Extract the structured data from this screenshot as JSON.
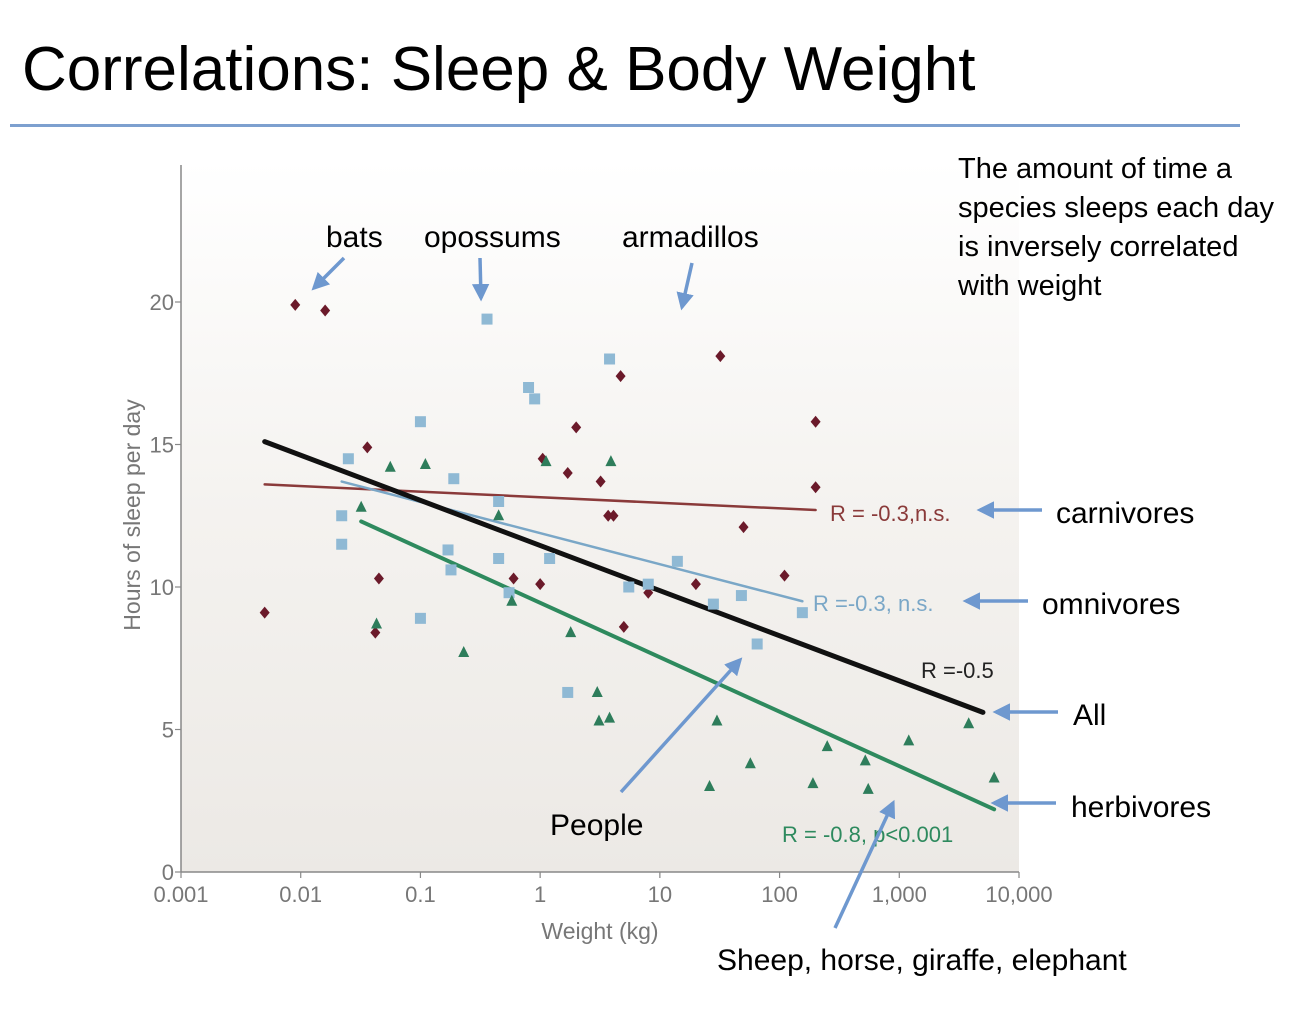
{
  "title": "Correlations: Sleep & Body Weight",
  "description": "The amount of time a species sleeps each day is inversely correlated with weight",
  "annotations": {
    "bats": "bats",
    "opossums": "opossums",
    "armadillos": "armadillos",
    "carnivores": "carnivores",
    "omnivores": "omnivores",
    "all": "All",
    "herbivores": "herbivores",
    "people": "People",
    "large_herbivores": "Sheep, horse, giraffe, elephant"
  },
  "colors": {
    "carnivore": "#6b1a2a",
    "omnivore": "#8fb9d4",
    "herbivore": "#2e7d5b",
    "all": "#111111",
    "carnivore_line": "#8a3a3a",
    "omnivore_line": "#7aa7c7",
    "herbivore_line": "#2e8a5e",
    "arrow": "#6e98cf",
    "plot_bg": "#f1efec",
    "axis": "#888888"
  },
  "chart_data": {
    "type": "scatter",
    "xlabel": "Weight (kg)",
    "ylabel": "Hours of sleep per day",
    "xscale": "log",
    "xlim": [
      0.001,
      10000
    ],
    "ylim": [
      0,
      24
    ],
    "xticks": [
      {
        "value": 0.001,
        "label": "0.001"
      },
      {
        "value": 0.01,
        "label": "0.01"
      },
      {
        "value": 0.1,
        "label": "0.1"
      },
      {
        "value": 1,
        "label": "1"
      },
      {
        "value": 10,
        "label": "10"
      },
      {
        "value": 100,
        "label": "100"
      },
      {
        "value": 1000,
        "label": "1,000"
      },
      {
        "value": 10000,
        "label": "10,000"
      }
    ],
    "yticks": [
      {
        "value": 0,
        "label": "0"
      },
      {
        "value": 5,
        "label": "5"
      },
      {
        "value": 10,
        "label": "10"
      },
      {
        "value": 15,
        "label": "15"
      },
      {
        "value": 20,
        "label": "20"
      }
    ],
    "grid": false,
    "series": [
      {
        "key": "carnivore",
        "marker": "diamond",
        "points": [
          [
            0.005,
            9.1
          ],
          [
            0.009,
            19.9
          ],
          [
            0.016,
            19.7
          ],
          [
            0.036,
            14.9
          ],
          [
            0.045,
            10.3
          ],
          [
            0.042,
            8.4
          ],
          [
            0.6,
            10.3
          ],
          [
            1.0,
            10.1
          ],
          [
            1.05,
            14.5
          ],
          [
            1.7,
            14.0
          ],
          [
            2.0,
            15.6
          ],
          [
            3.2,
            13.7
          ],
          [
            3.7,
            12.5
          ],
          [
            4.1,
            12.5
          ],
          [
            4.7,
            17.4
          ],
          [
            5.0,
            8.6
          ],
          [
            8.0,
            9.8
          ],
          [
            20,
            10.1
          ],
          [
            32,
            18.1
          ],
          [
            50,
            12.1
          ],
          [
            110,
            10.4
          ],
          [
            200,
            15.8
          ],
          [
            200,
            13.5
          ]
        ]
      },
      {
        "key": "omnivore",
        "marker": "square",
        "points": [
          [
            0.022,
            12.5
          ],
          [
            0.022,
            11.5
          ],
          [
            0.025,
            14.5
          ],
          [
            0.1,
            15.8
          ],
          [
            0.1,
            8.9
          ],
          [
            0.17,
            11.3
          ],
          [
            0.18,
            10.6
          ],
          [
            0.19,
            13.8
          ],
          [
            0.36,
            19.4
          ],
          [
            0.45,
            13.0
          ],
          [
            0.45,
            11.0
          ],
          [
            0.55,
            9.8
          ],
          [
            0.8,
            17.0
          ],
          [
            0.9,
            16.6
          ],
          [
            1.2,
            11.0
          ],
          [
            1.7,
            6.3
          ],
          [
            3.8,
            18.0
          ],
          [
            5.5,
            10.0
          ],
          [
            8.0,
            10.1
          ],
          [
            14,
            10.9
          ],
          [
            28,
            9.4
          ],
          [
            48,
            9.7
          ],
          [
            65,
            8.0
          ],
          [
            155,
            9.1
          ]
        ]
      },
      {
        "key": "herbivore",
        "marker": "triangle",
        "points": [
          [
            0.032,
            12.8
          ],
          [
            0.043,
            8.7
          ],
          [
            0.056,
            14.2
          ],
          [
            0.11,
            14.3
          ],
          [
            0.23,
            7.7
          ],
          [
            0.45,
            12.5
          ],
          [
            0.58,
            9.5
          ],
          [
            1.12,
            14.4
          ],
          [
            1.8,
            8.4
          ],
          [
            3.0,
            6.3
          ],
          [
            3.1,
            5.3
          ],
          [
            3.8,
            5.4
          ],
          [
            3.9,
            14.4
          ],
          [
            26,
            3.0
          ],
          [
            30,
            5.3
          ],
          [
            57,
            3.8
          ],
          [
            190,
            3.1
          ],
          [
            250,
            4.4
          ],
          [
            520,
            3.9
          ],
          [
            550,
            2.9
          ],
          [
            1200,
            4.6
          ],
          [
            3800,
            5.2
          ],
          [
            6200,
            3.3
          ]
        ]
      }
    ],
    "trendlines": [
      {
        "key": "carnivore",
        "label": "R = -0.3,n.s.",
        "from": [
          0.005,
          13.6
        ],
        "to": [
          200,
          12.7
        ]
      },
      {
        "key": "omnivore",
        "label": "R =-0.3, n.s.",
        "from": [
          0.022,
          13.7
        ],
        "to": [
          155,
          9.5
        ]
      },
      {
        "key": "all",
        "label": "R =-0.5",
        "from": [
          0.005,
          15.1
        ],
        "to": [
          5000,
          5.6
        ]
      },
      {
        "key": "herbivore",
        "label": "R = -0.8, p<0.001",
        "from": [
          0.032,
          12.3
        ],
        "to": [
          6200,
          2.2
        ]
      }
    ]
  }
}
